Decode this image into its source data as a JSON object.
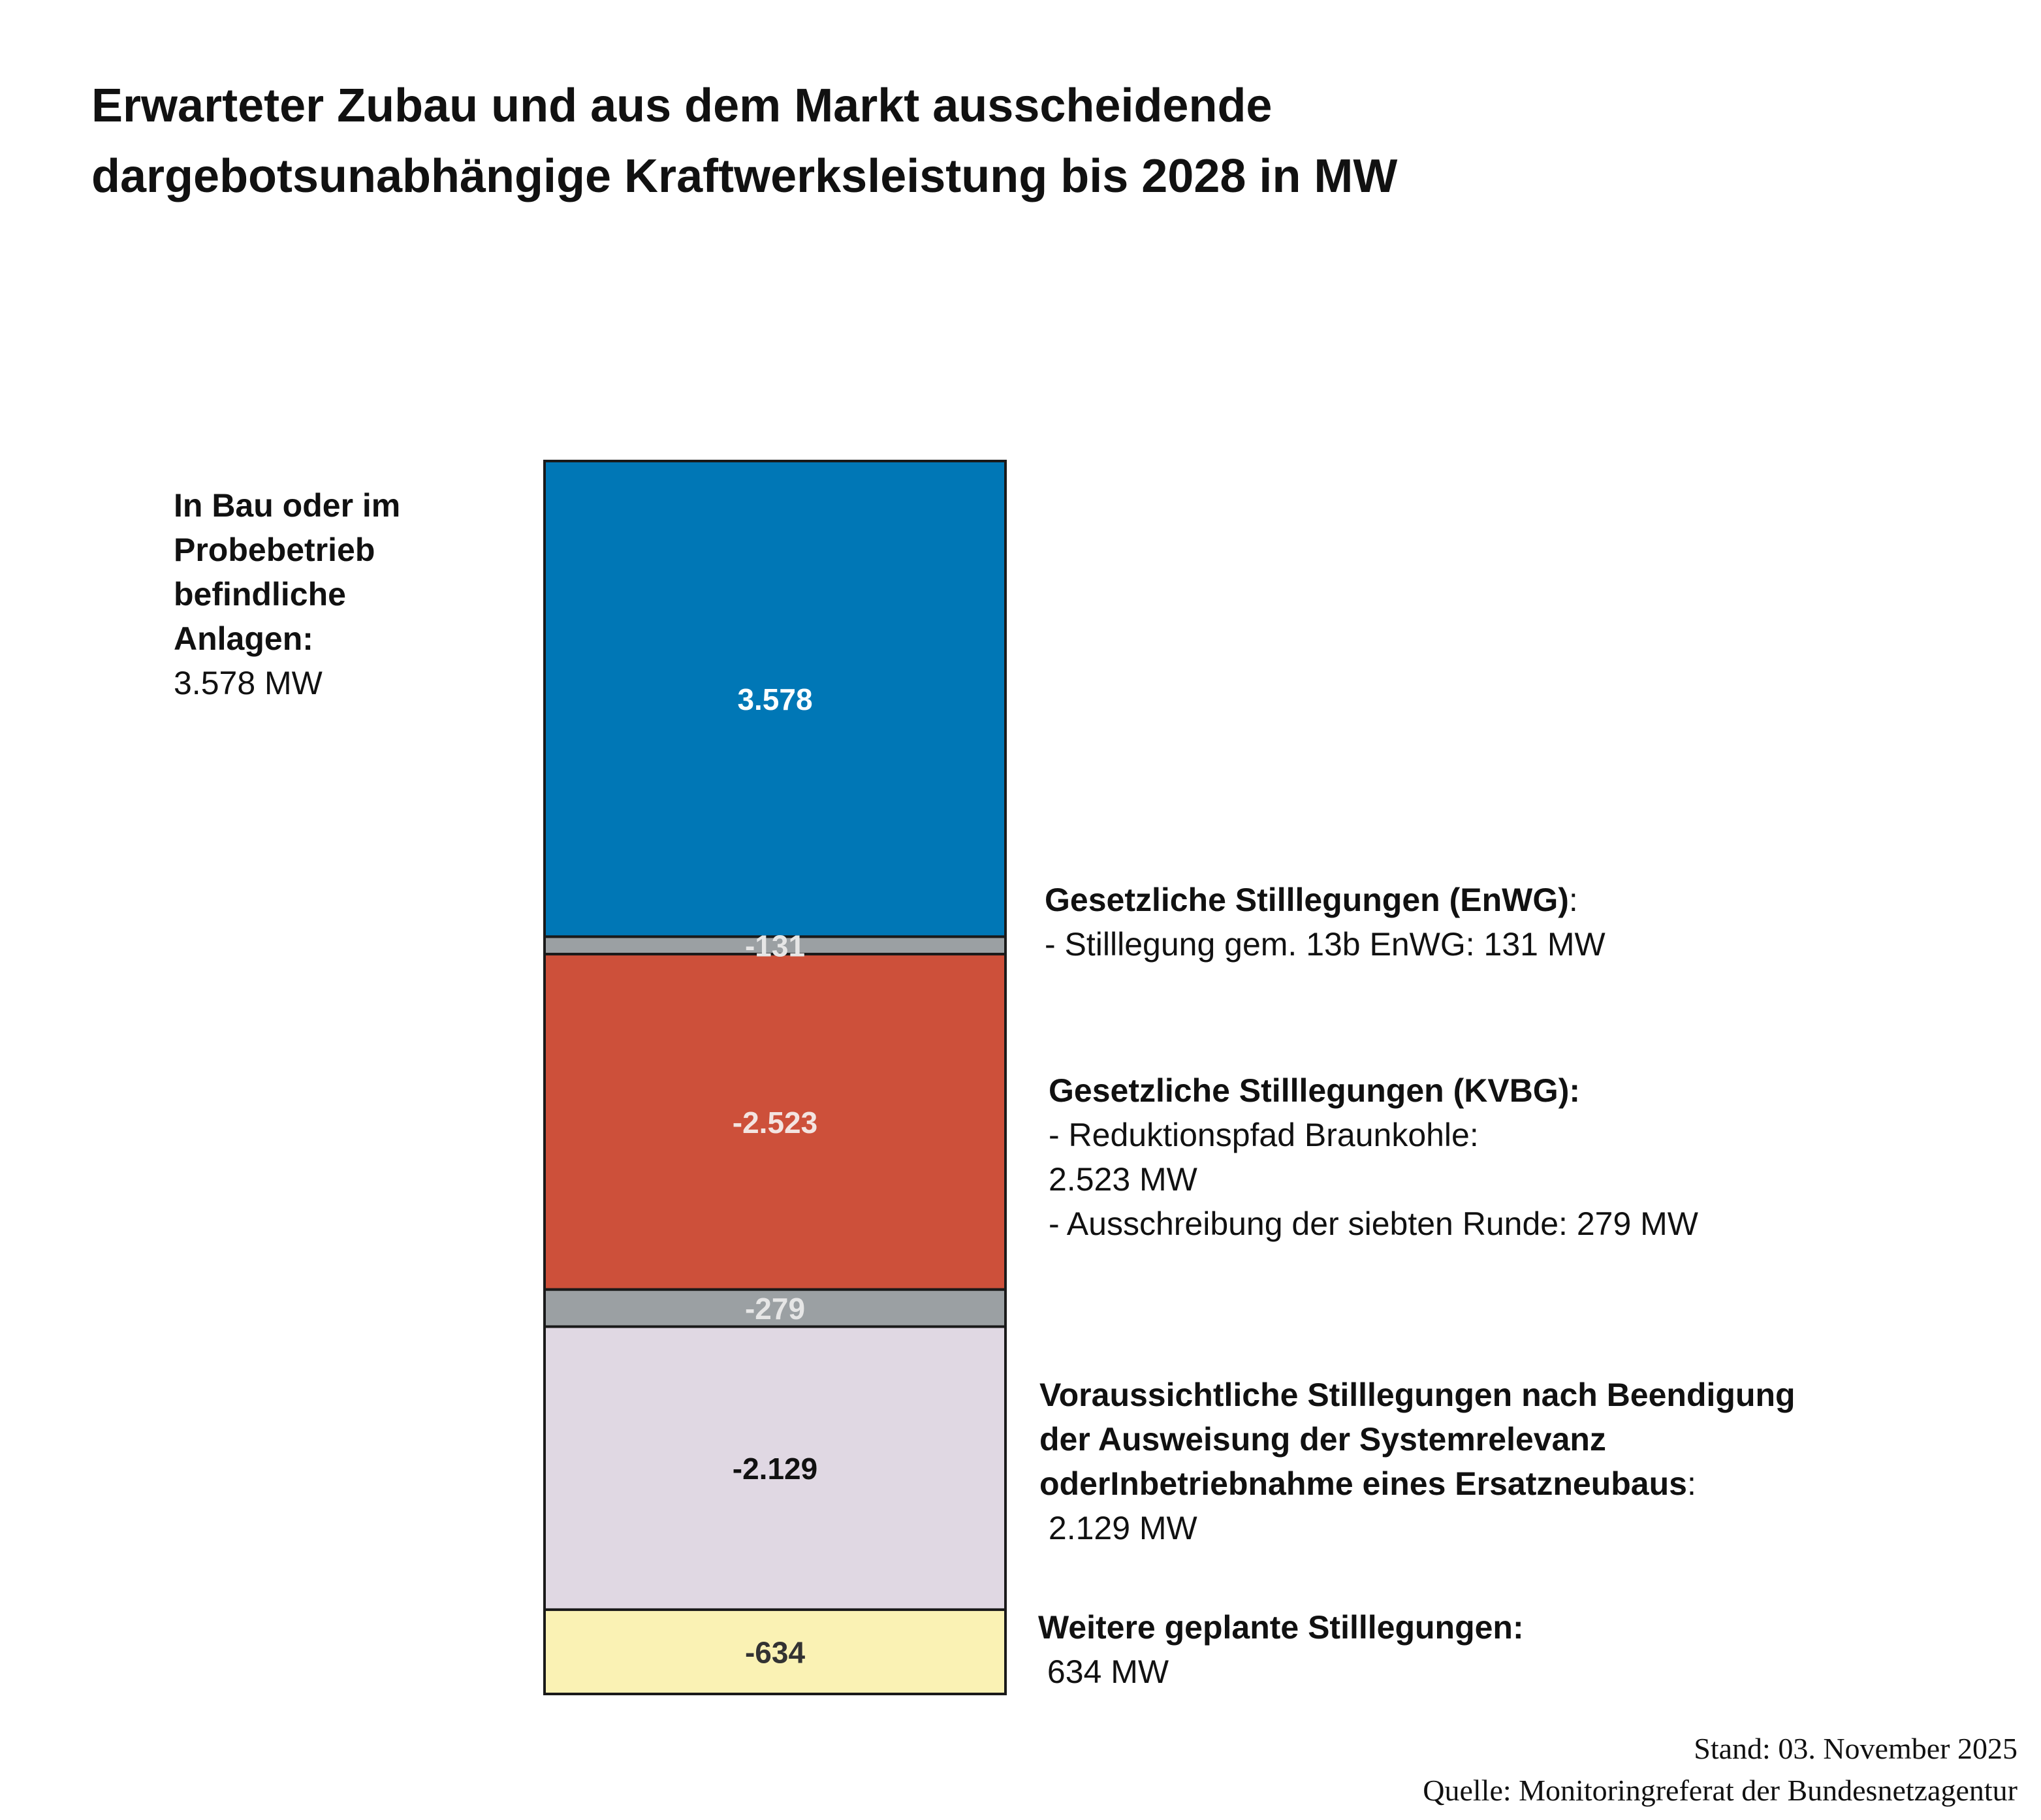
{
  "title_lines": [
    "Erwarteter Zubau und aus dem Markt ausscheidende",
    "dargebotsunabhängige Kraftwerksleistung bis 2028 in MW"
  ],
  "chart_data": {
    "type": "bar",
    "stacked": true,
    "categories": [
      ""
    ],
    "series": [
      {
        "value": 3578,
        "label": "3.578",
        "color": "#0077B6",
        "label_color": "#ffffff"
      },
      {
        "value": -131,
        "label": "-131",
        "color": "#9BA0A3",
        "label_color": "#e6e6e6"
      },
      {
        "value": -2523,
        "label": "-2.523",
        "color": "#CD503A",
        "label_color": "#f3e4e1"
      },
      {
        "value": -279,
        "label": "-279",
        "color": "#9BA0A3",
        "label_color": "#e6e6e6"
      },
      {
        "value": -2129,
        "label": "-2.129",
        "color": "#E0D8E3",
        "label_color": "#111111"
      },
      {
        "value": -634,
        "label": "-634",
        "color": "#FAF2B4",
        "label_color": "#333333"
      }
    ]
  },
  "annotations": {
    "left": {
      "heading": [
        "In Bau oder im",
        "Probebetrieb",
        "befindliche",
        "Anlagen:"
      ],
      "value": "3.578 MW"
    },
    "enwg": {
      "heading": "Gesetzliche Stilllegungen (EnWG)",
      "suffix": ":",
      "line": "- Stilllegung gem. 13b EnWG: 131 MW"
    },
    "kvbg": {
      "heading": "Gesetzliche Stilllegungen (KVBG):",
      "lines": [
        "- Reduktionspfad Braunkohle:",
        "2.523 MW",
        "- Ausschreibung der siebten Runde: 279 MW"
      ]
    },
    "system": {
      "heading": [
        "Voraussichtliche Stilllegungen nach Beendigung",
        "der Ausweisung der Systemrelevanz",
        "oderInbetriebnahme eines Ersatzneubaus"
      ],
      "suffix": ":",
      "value": " 2.129 MW"
    },
    "further": {
      "heading": "Weitere geplante Stilllegungen:",
      "value": " 634 MW"
    }
  },
  "footer": {
    "date": "Stand: 03. November 2025",
    "source": "Quelle: Monitoringreferat der Bundesnetzagentur"
  }
}
